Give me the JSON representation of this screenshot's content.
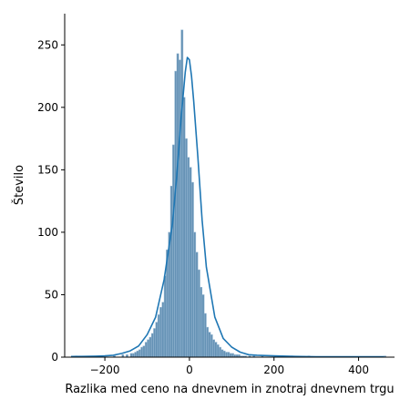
{
  "chart_data": {
    "type": "histogram",
    "xlabel": "Razlika med ceno na dnevnem in znotraj dnevnem trgu",
    "ylabel": "Število",
    "xlim": [
      -295,
      485
    ],
    "ylim": [
      0,
      275
    ],
    "xticks": [
      -200,
      0,
      200,
      400
    ],
    "yticks": [
      0,
      50,
      100,
      150,
      200,
      250
    ],
    "grid": false,
    "bar_color": "#4a7fa8",
    "bar_edge_color": "#9cbcd6",
    "kde_color": "#1f77b4",
    "bins": {
      "x": [
        -270,
        -220,
        -180,
        -160,
        -150,
        -140,
        -135,
        -130,
        -125,
        -120,
        -115,
        -110,
        -105,
        -100,
        -95,
        -90,
        -85,
        -80,
        -75,
        -70,
        -65,
        -60,
        -55,
        -50,
        -45,
        -40,
        -35,
        -30,
        -25,
        -20,
        -15,
        -10,
        -5,
        0,
        5,
        10,
        15,
        20,
        25,
        30,
        35,
        40,
        45,
        50,
        55,
        60,
        65,
        70,
        75,
        80,
        85,
        90,
        95,
        100,
        105,
        110,
        115,
        120,
        125,
        130,
        140,
        150,
        170,
        200,
        240,
        280,
        460
      ],
      "counts": [
        1,
        1,
        1,
        2,
        2,
        3,
        3,
        4,
        5,
        6,
        8,
        9,
        12,
        14,
        16,
        19,
        23,
        28,
        34,
        40,
        44,
        65,
        86,
        100,
        137,
        170,
        229,
        243,
        238,
        262,
        208,
        175,
        160,
        152,
        140,
        100,
        84,
        70,
        56,
        50,
        35,
        24,
        20,
        18,
        14,
        12,
        10,
        8,
        6,
        5,
        4,
        4,
        3,
        3,
        2,
        2,
        2,
        1,
        1,
        1,
        1,
        1,
        1,
        1,
        1,
        1,
        1
      ]
    },
    "bin_width": 5,
    "kde": {
      "x": [
        -280,
        -250,
        -220,
        -200,
        -180,
        -160,
        -140,
        -120,
        -100,
        -80,
        -60,
        -40,
        -30,
        -20,
        -10,
        -5,
        0,
        5,
        10,
        20,
        30,
        40,
        60,
        80,
        100,
        120,
        140,
        160,
        200,
        250,
        300,
        400,
        460
      ],
      "y": [
        0.5,
        0.6,
        0.8,
        1.0,
        1.5,
        3,
        5,
        9,
        18,
        32,
        62,
        107,
        145,
        190,
        228,
        240,
        238,
        225,
        205,
        160,
        110,
        72,
        32,
        15,
        8,
        4,
        2,
        1.5,
        1,
        0.6,
        0.4,
        0.3,
        0.3
      ]
    }
  }
}
